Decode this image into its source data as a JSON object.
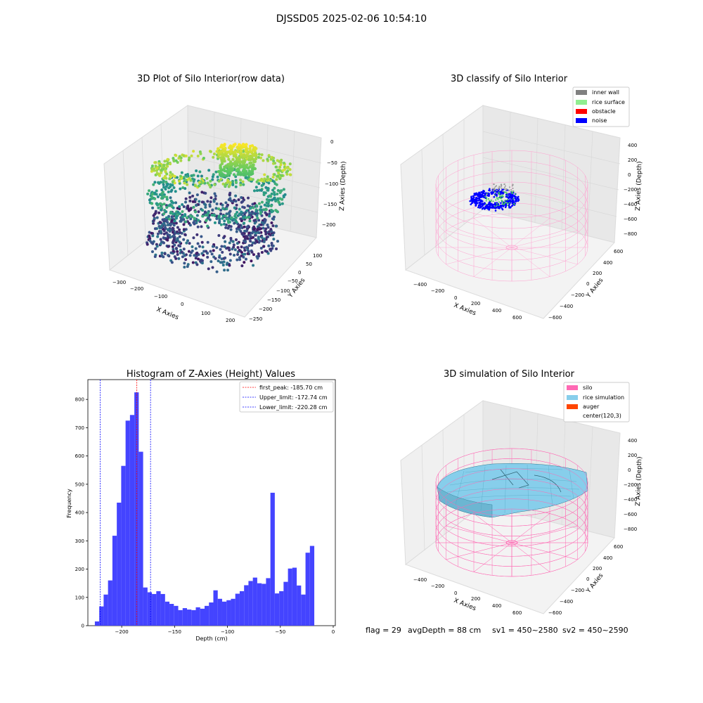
{
  "suptitle": "DJSSD05 2025-02-06 10:54:10",
  "panels": {
    "raw": {
      "title": "3D Plot of Silo Interior(row data)",
      "xlabel": "X Axies",
      "ylabel": "Y Axies",
      "zlabel": "Z Axies (Depth)",
      "xticks": [
        "−300",
        "−200",
        "−100",
        "0",
        "100",
        "200"
      ],
      "yticks": [
        "100",
        "50",
        "0",
        "−50",
        "−100",
        "−150",
        "−200",
        "−250"
      ],
      "zticks": [
        "0",
        "−50",
        "−100",
        "−150",
        "−200"
      ]
    },
    "classify": {
      "title": "3D classify of Silo Interior",
      "xlabel": "X Axies",
      "ylabel": "Y Axies",
      "zlabel": "Z Axies (Depth)",
      "xticks": [
        "−400",
        "−200",
        "0",
        "200",
        "400",
        "600"
      ],
      "yticks": [
        "600",
        "400",
        "200",
        "0",
        "−200",
        "−400",
        "−600"
      ],
      "zticks": [
        "400",
        "200",
        "0",
        "−200",
        "−400",
        "−600",
        "−800"
      ],
      "legend": [
        {
          "label": "inner wall",
          "color": "#808080"
        },
        {
          "label": "rice surface",
          "color": "#90ee90"
        },
        {
          "label": "obstacle",
          "color": "#ff0000"
        },
        {
          "label": "noise",
          "color": "#0000ff"
        }
      ]
    },
    "simulation": {
      "title": "3D simulation of Silo Interior",
      "xlabel": "X Axies",
      "ylabel": "Y Axies",
      "zlabel": "Z Axies (Depth)",
      "xticks": [
        "−400",
        "−200",
        "0",
        "200",
        "400",
        "600"
      ],
      "yticks": [
        "600",
        "400",
        "200",
        "0",
        "−200",
        "−400",
        "−600"
      ],
      "zticks": [
        "400",
        "200",
        "0",
        "−200",
        "−400",
        "−600",
        "−800"
      ],
      "legend": [
        {
          "label": "silo",
          "color": "#ff69b4"
        },
        {
          "label": "rice simulation",
          "color": "#87ceeb"
        },
        {
          "label": "auger",
          "color": "#ff4500"
        },
        {
          "label": "center(120,3)",
          "color": "#ffffff"
        }
      ]
    }
  },
  "status": {
    "flag": "flag = 29",
    "avg_depth": "avgDepth = 88 cm",
    "sv1": "sv1 = 450~2580",
    "sv2": "sv2 = 450~2590"
  },
  "chart_data": {
    "type": "bar",
    "title": "Histogram of Z-Axies (Height) Values",
    "xlabel": "Depth (cm)",
    "ylabel": "Frequency",
    "xlim": [
      -232,
      2
    ],
    "ylim": [
      0,
      870
    ],
    "xticks": [
      -200,
      -150,
      -100,
      -50,
      0
    ],
    "xtick_labels": [
      "−200",
      "−150",
      "−100",
      "−50",
      "0"
    ],
    "yticks": [
      0,
      100,
      200,
      300,
      400,
      500,
      600,
      700,
      800
    ],
    "bar_color": "#4444ff",
    "bin_start": -225.4,
    "bin_width": 4.15,
    "values": [
      15,
      68,
      110,
      160,
      318,
      435,
      565,
      725,
      745,
      825,
      615,
      135,
      118,
      112,
      122,
      112,
      85,
      77,
      70,
      55,
      62,
      57,
      55,
      65,
      60,
      70,
      82,
      125,
      95,
      85,
      90,
      95,
      113,
      122,
      143,
      158,
      170,
      150,
      148,
      168,
      470,
      114,
      122,
      155,
      202,
      205,
      142,
      110,
      258,
      282
    ],
    "vlines": [
      {
        "x": -185.7,
        "label": "first_peak: -185.70 cm",
        "color": "#ff0000"
      },
      {
        "x": -172.74,
        "label": "Upper_limit: -172.74 cm",
        "color": "#0000ff"
      },
      {
        "x": -220.28,
        "label": "Lower_limit: -220.28 cm",
        "color": "#0000ff"
      }
    ]
  }
}
